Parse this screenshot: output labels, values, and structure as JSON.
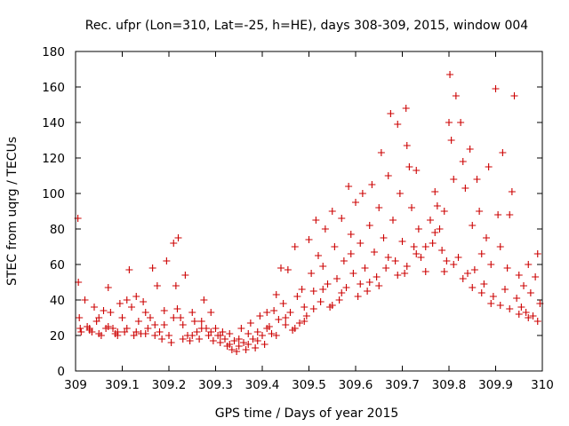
{
  "chart_data": {
    "type": "scatter",
    "title": "Rec. ufpr (Lon=310, Lat=-25, h=HE), days 308-309, 2015, window 004",
    "xlabel": "GPS time / Days of year 2015",
    "ylabel": "STEC from uqrg / TECUs",
    "xlim": [
      309,
      310
    ],
    "ylim": [
      0,
      180
    ],
    "xticks": [
      309,
      309.1,
      309.2,
      309.3,
      309.4,
      309.5,
      309.6,
      309.7,
      309.8,
      309.9,
      310
    ],
    "xtick_labels": [
      "309",
      "309.1",
      "309.2",
      "309.3",
      "309.4",
      "309.5",
      "309.6",
      "309.7",
      "309.8",
      "309.9",
      "310"
    ],
    "yticks": [
      0,
      20,
      40,
      60,
      80,
      100,
      120,
      140,
      160,
      180
    ],
    "ytick_labels": [
      "0",
      "20",
      "40",
      "60",
      "80",
      "100",
      "120",
      "140",
      "160",
      "180"
    ],
    "marker": "+",
    "color": "#cc0000",
    "grid": false,
    "legend": "none",
    "points": [
      [
        309.005,
        86
      ],
      [
        309.006,
        50
      ],
      [
        309.008,
        30
      ],
      [
        309.01,
        24
      ],
      [
        309.012,
        22
      ],
      [
        309.02,
        40
      ],
      [
        309.025,
        25
      ],
      [
        309.03,
        23
      ],
      [
        309.035,
        22
      ],
      [
        309.04,
        36
      ],
      [
        309.045,
        28
      ],
      [
        309.05,
        21
      ],
      [
        309.055,
        20
      ],
      [
        309.06,
        34
      ],
      [
        309.065,
        24
      ],
      [
        309.07,
        47
      ],
      [
        309.075,
        33
      ],
      [
        309.08,
        24
      ],
      [
        309.085,
        21
      ],
      [
        309.09,
        20
      ],
      [
        309.095,
        38
      ],
      [
        309.1,
        30
      ],
      [
        309.105,
        22
      ],
      [
        309.11,
        40
      ],
      [
        309.115,
        57
      ],
      [
        309.12,
        36
      ],
      [
        309.125,
        20
      ],
      [
        309.13,
        42
      ],
      [
        309.135,
        28
      ],
      [
        309.14,
        21
      ],
      [
        309.145,
        39
      ],
      [
        309.15,
        21
      ],
      [
        309.155,
        24
      ],
      [
        309.16,
        30
      ],
      [
        309.165,
        58
      ],
      [
        309.17,
        26
      ],
      [
        309.175,
        48
      ],
      [
        309.18,
        22
      ],
      [
        309.185,
        18
      ],
      [
        309.19,
        34
      ],
      [
        309.195,
        62
      ],
      [
        309.2,
        20
      ],
      [
        309.205,
        16
      ],
      [
        309.21,
        72
      ],
      [
        309.215,
        48
      ],
      [
        309.218,
        35
      ],
      [
        309.22,
        75
      ],
      [
        309.225,
        30
      ],
      [
        309.23,
        26
      ],
      [
        309.235,
        54
      ],
      [
        309.24,
        20
      ],
      [
        309.245,
        17
      ],
      [
        309.25,
        33
      ],
      [
        309.255,
        28
      ],
      [
        309.26,
        22
      ],
      [
        309.265,
        18
      ],
      [
        309.27,
        28
      ],
      [
        309.275,
        40
      ],
      [
        309.28,
        24
      ],
      [
        309.285,
        20
      ],
      [
        309.29,
        33
      ],
      [
        309.295,
        17
      ],
      [
        309.3,
        24
      ],
      [
        309.305,
        20
      ],
      [
        309.31,
        16
      ],
      [
        309.315,
        22
      ],
      [
        309.32,
        18
      ],
      [
        309.325,
        14
      ],
      [
        309.33,
        21
      ],
      [
        309.335,
        12
      ],
      [
        309.34,
        17
      ],
      [
        309.345,
        11
      ],
      [
        309.35,
        14
      ],
      [
        309.355,
        24
      ],
      [
        309.36,
        16
      ],
      [
        309.365,
        12
      ],
      [
        309.37,
        21
      ],
      [
        309.375,
        27
      ],
      [
        309.38,
        18
      ],
      [
        309.385,
        13
      ],
      [
        309.39,
        22
      ],
      [
        309.395,
        31
      ],
      [
        309.4,
        20
      ],
      [
        309.405,
        15
      ],
      [
        309.41,
        33
      ],
      [
        309.415,
        25
      ],
      [
        309.42,
        21
      ],
      [
        309.425,
        34
      ],
      [
        309.43,
        43
      ],
      [
        309.435,
        29
      ],
      [
        309.44,
        58
      ],
      [
        309.445,
        38
      ],
      [
        309.45,
        26
      ],
      [
        309.455,
        57
      ],
      [
        309.46,
        33
      ],
      [
        309.465,
        23
      ],
      [
        309.47,
        70
      ],
      [
        309.475,
        42
      ],
      [
        309.48,
        27
      ],
      [
        309.485,
        46
      ],
      [
        309.49,
        36
      ],
      [
        309.495,
        31
      ],
      [
        309.5,
        74
      ],
      [
        309.505,
        55
      ],
      [
        309.51,
        45
      ],
      [
        309.515,
        85
      ],
      [
        309.52,
        65
      ],
      [
        309.525,
        39
      ],
      [
        309.53,
        59
      ],
      [
        309.535,
        80
      ],
      [
        309.54,
        49
      ],
      [
        309.545,
        36
      ],
      [
        309.55,
        90
      ],
      [
        309.555,
        70
      ],
      [
        309.56,
        52
      ],
      [
        309.565,
        40
      ],
      [
        309.57,
        86
      ],
      [
        309.575,
        62
      ],
      [
        309.58,
        47
      ],
      [
        309.585,
        104
      ],
      [
        309.59,
        77
      ],
      [
        309.595,
        55
      ],
      [
        309.6,
        95
      ],
      [
        309.605,
        42
      ],
      [
        309.61,
        72
      ],
      [
        309.615,
        100
      ],
      [
        309.62,
        58
      ],
      [
        309.625,
        45
      ],
      [
        309.63,
        82
      ],
      [
        309.635,
        105
      ],
      [
        309.64,
        67
      ],
      [
        309.645,
        53
      ],
      [
        309.65,
        92
      ],
      [
        309.655,
        123
      ],
      [
        309.66,
        75
      ],
      [
        309.665,
        58
      ],
      [
        309.67,
        110
      ],
      [
        309.675,
        145
      ],
      [
        309.68,
        85
      ],
      [
        309.685,
        62
      ],
      [
        309.69,
        139
      ],
      [
        309.695,
        100
      ],
      [
        309.7,
        73
      ],
      [
        309.705,
        55
      ],
      [
        309.708,
        148
      ],
      [
        309.71,
        127
      ],
      [
        309.715,
        115
      ],
      [
        309.72,
        92
      ],
      [
        309.725,
        70
      ],
      [
        309.73,
        113
      ],
      [
        309.735,
        80
      ],
      [
        309.74,
        64
      ],
      [
        309.75,
        56
      ],
      [
        309.76,
        85
      ],
      [
        309.765,
        72
      ],
      [
        309.77,
        101
      ],
      [
        309.775,
        93
      ],
      [
        309.78,
        80
      ],
      [
        309.785,
        68
      ],
      [
        309.79,
        90
      ],
      [
        309.795,
        62
      ],
      [
        309.8,
        140
      ],
      [
        309.802,
        167
      ],
      [
        309.805,
        130
      ],
      [
        309.81,
        108
      ],
      [
        309.815,
        155
      ],
      [
        309.82,
        64
      ],
      [
        309.825,
        140
      ],
      [
        309.83,
        118
      ],
      [
        309.835,
        103
      ],
      [
        309.84,
        55
      ],
      [
        309.845,
        125
      ],
      [
        309.85,
        82
      ],
      [
        309.855,
        57
      ],
      [
        309.86,
        108
      ],
      [
        309.865,
        90
      ],
      [
        309.87,
        66
      ],
      [
        309.875,
        49
      ],
      [
        309.88,
        75
      ],
      [
        309.885,
        115
      ],
      [
        309.89,
        60
      ],
      [
        309.895,
        42
      ],
      [
        309.9,
        159
      ],
      [
        309.905,
        88
      ],
      [
        309.91,
        70
      ],
      [
        309.915,
        123
      ],
      [
        309.92,
        46
      ],
      [
        309.925,
        58
      ],
      [
        309.93,
        88
      ],
      [
        309.935,
        101
      ],
      [
        309.94,
        155
      ],
      [
        309.945,
        41
      ],
      [
        309.95,
        54
      ],
      [
        309.955,
        36
      ],
      [
        309.96,
        48
      ],
      [
        309.965,
        33
      ],
      [
        309.97,
        60
      ],
      [
        309.975,
        44
      ],
      [
        309.98,
        31
      ],
      [
        309.985,
        53
      ],
      [
        309.99,
        66
      ],
      [
        309.995,
        38
      ],
      [
        309.03,
        24
      ],
      [
        309.05,
        30
      ],
      [
        309.07,
        25
      ],
      [
        309.09,
        22
      ],
      [
        309.11,
        24
      ],
      [
        309.13,
        22
      ],
      [
        309.15,
        33
      ],
      [
        309.17,
        20
      ],
      [
        309.19,
        26
      ],
      [
        309.21,
        30
      ],
      [
        309.23,
        18
      ],
      [
        309.25,
        20
      ],
      [
        309.27,
        24
      ],
      [
        309.29,
        22
      ],
      [
        309.31,
        20
      ],
      [
        309.33,
        15
      ],
      [
        309.35,
        18
      ],
      [
        309.37,
        15
      ],
      [
        309.39,
        17
      ],
      [
        309.41,
        24
      ],
      [
        309.43,
        20
      ],
      [
        309.45,
        30
      ],
      [
        309.47,
        24
      ],
      [
        309.49,
        28
      ],
      [
        309.51,
        35
      ],
      [
        309.53,
        46
      ],
      [
        309.55,
        37
      ],
      [
        309.57,
        44
      ],
      [
        309.59,
        66
      ],
      [
        309.61,
        49
      ],
      [
        309.63,
        50
      ],
      [
        309.65,
        48
      ],
      [
        309.67,
        64
      ],
      [
        309.69,
        54
      ],
      [
        309.71,
        59
      ],
      [
        309.73,
        66
      ],
      [
        309.75,
        70
      ],
      [
        309.77,
        78
      ],
      [
        309.79,
        56
      ],
      [
        309.81,
        60
      ],
      [
        309.83,
        52
      ],
      [
        309.85,
        47
      ],
      [
        309.87,
        44
      ],
      [
        309.89,
        38
      ],
      [
        309.91,
        37
      ],
      [
        309.93,
        35
      ],
      [
        309.95,
        32
      ],
      [
        309.97,
        30
      ],
      [
        309.99,
        28
      ]
    ]
  }
}
